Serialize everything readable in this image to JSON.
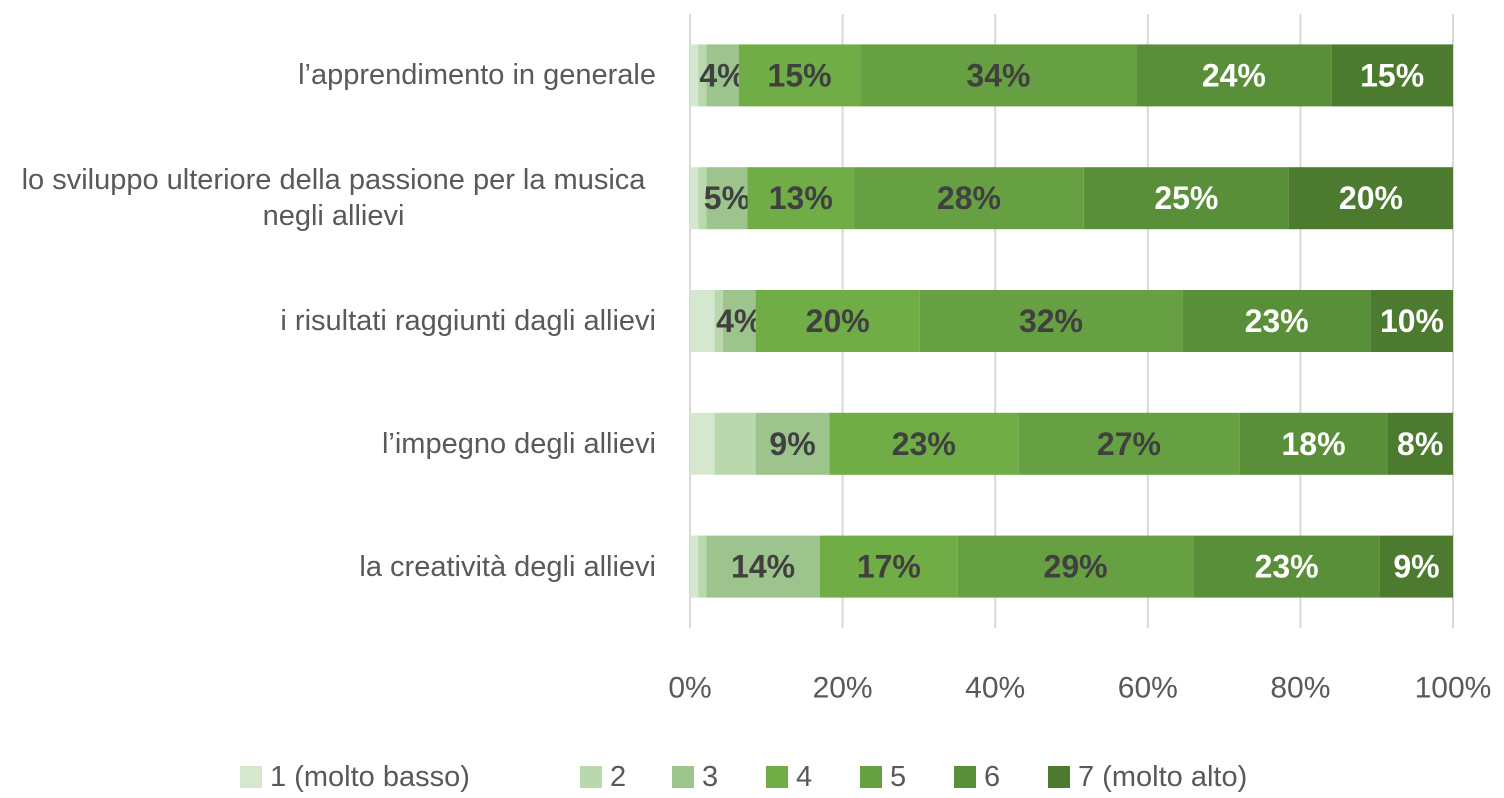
{
  "chart_data": {
    "type": "bar",
    "orientation": "horizontal",
    "stacked": "percent",
    "categories": [
      "l’apprendimento in generale",
      "lo sviluppo ulteriore della passione per la musica negli allievi",
      "i risultati raggiunti dagli allievi",
      "l’impegno degli allievi",
      "la creatività degli allievi"
    ],
    "series": [
      {
        "name": "1 (molto basso)",
        "color": "#d6e7cf",
        "label_color": "#404040",
        "values": [
          1,
          1,
          3,
          3,
          1
        ],
        "value_labels": [
          null,
          null,
          null,
          null,
          null
        ]
      },
      {
        "name": "2",
        "color": "#bad8ae",
        "label_color": "#404040",
        "values": [
          1,
          1,
          1,
          5,
          1
        ],
        "value_labels": [
          null,
          null,
          null,
          null,
          null
        ]
      },
      {
        "name": "3",
        "color": "#9cc48c",
        "label_color": "#404040",
        "values": [
          4,
          5,
          4,
          9,
          14
        ],
        "value_labels": [
          "4%",
          "5%",
          "4%",
          "9%",
          "14%"
        ]
      },
      {
        "name": "4",
        "color": "#70ad47",
        "label_color": "#404040",
        "values": [
          15,
          13,
          20,
          23,
          17
        ],
        "value_labels": [
          "15%",
          "13%",
          "20%",
          "23%",
          "17%"
        ]
      },
      {
        "name": "5",
        "color": "#67a042",
        "label_color": "#404040",
        "values": [
          34,
          28,
          32,
          27,
          29
        ],
        "value_labels": [
          "34%",
          "28%",
          "32%",
          "27%",
          "29%"
        ]
      },
      {
        "name": "6",
        "color": "#5a8f39",
        "label_color": "#ffffff",
        "values": [
          24,
          25,
          23,
          18,
          23
        ],
        "value_labels": [
          "24%",
          "25%",
          "23%",
          "18%",
          "23%"
        ]
      },
      {
        "name": "7 (molto alto)",
        "color": "#4c7a2f",
        "label_color": "#ffffff",
        "values": [
          15,
          20,
          10,
          8,
          9
        ],
        "value_labels": [
          "15%",
          "20%",
          "10%",
          "8%",
          "9%"
        ]
      }
    ],
    "xlim": [
      0,
      100
    ],
    "xticks": [
      {
        "value": 0,
        "label": "0%"
      },
      {
        "value": 20,
        "label": "20%"
      },
      {
        "value": 40,
        "label": "40%"
      },
      {
        "value": 60,
        "label": "60%"
      },
      {
        "value": 80,
        "label": "80%"
      },
      {
        "value": 100,
        "label": "100%"
      }
    ],
    "grid": true,
    "legend": "bottom"
  }
}
